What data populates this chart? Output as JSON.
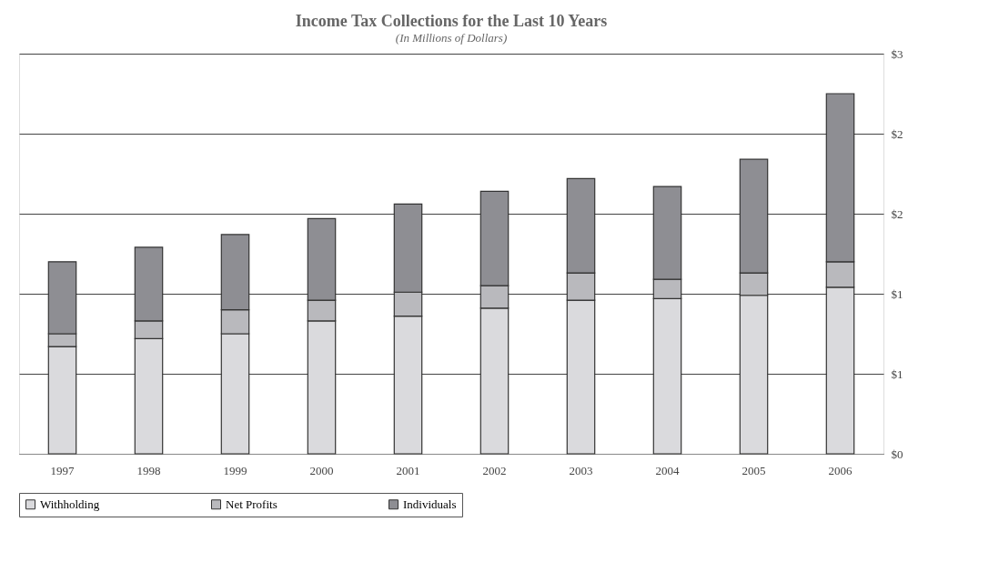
{
  "chart_data": {
    "type": "bar",
    "title": "Income Tax Collections for the Last 10 Years",
    "subtitle": "(In Millions of Dollars)",
    "categories": [
      "1997",
      "1998",
      "1999",
      "2000",
      "2001",
      "2002",
      "2003",
      "2004",
      "2005",
      "2006"
    ],
    "stacked": true,
    "series": [
      {
        "name": "Withholding",
        "color": "#dadadd",
        "values": [
          0.67,
          0.72,
          0.75,
          0.83,
          0.86,
          0.91,
          0.96,
          0.97,
          0.99,
          1.04
        ]
      },
      {
        "name": "Net Profits",
        "color": "#b9b9bd",
        "values": [
          0.08,
          0.11,
          0.15,
          0.13,
          0.15,
          0.14,
          0.17,
          0.12,
          0.14,
          0.16
        ]
      },
      {
        "name": "Individuals",
        "color": "#8e8e93",
        "values": [
          0.45,
          0.46,
          0.47,
          0.51,
          0.55,
          0.59,
          0.59,
          0.58,
          0.71,
          1.05
        ]
      }
    ],
    "ylim": [
      0,
      2.5
    ],
    "yticks": [
      {
        "value": 0,
        "label": "$0"
      },
      {
        "value": 0.5,
        "label": "$1"
      },
      {
        "value": 1,
        "label": "$1"
      },
      {
        "value": 1.5,
        "label": "$2"
      },
      {
        "value": 2,
        "label": "$2"
      },
      {
        "value": 2.5,
        "label": "$3"
      }
    ],
    "grid": "y",
    "legend": "bottom"
  }
}
